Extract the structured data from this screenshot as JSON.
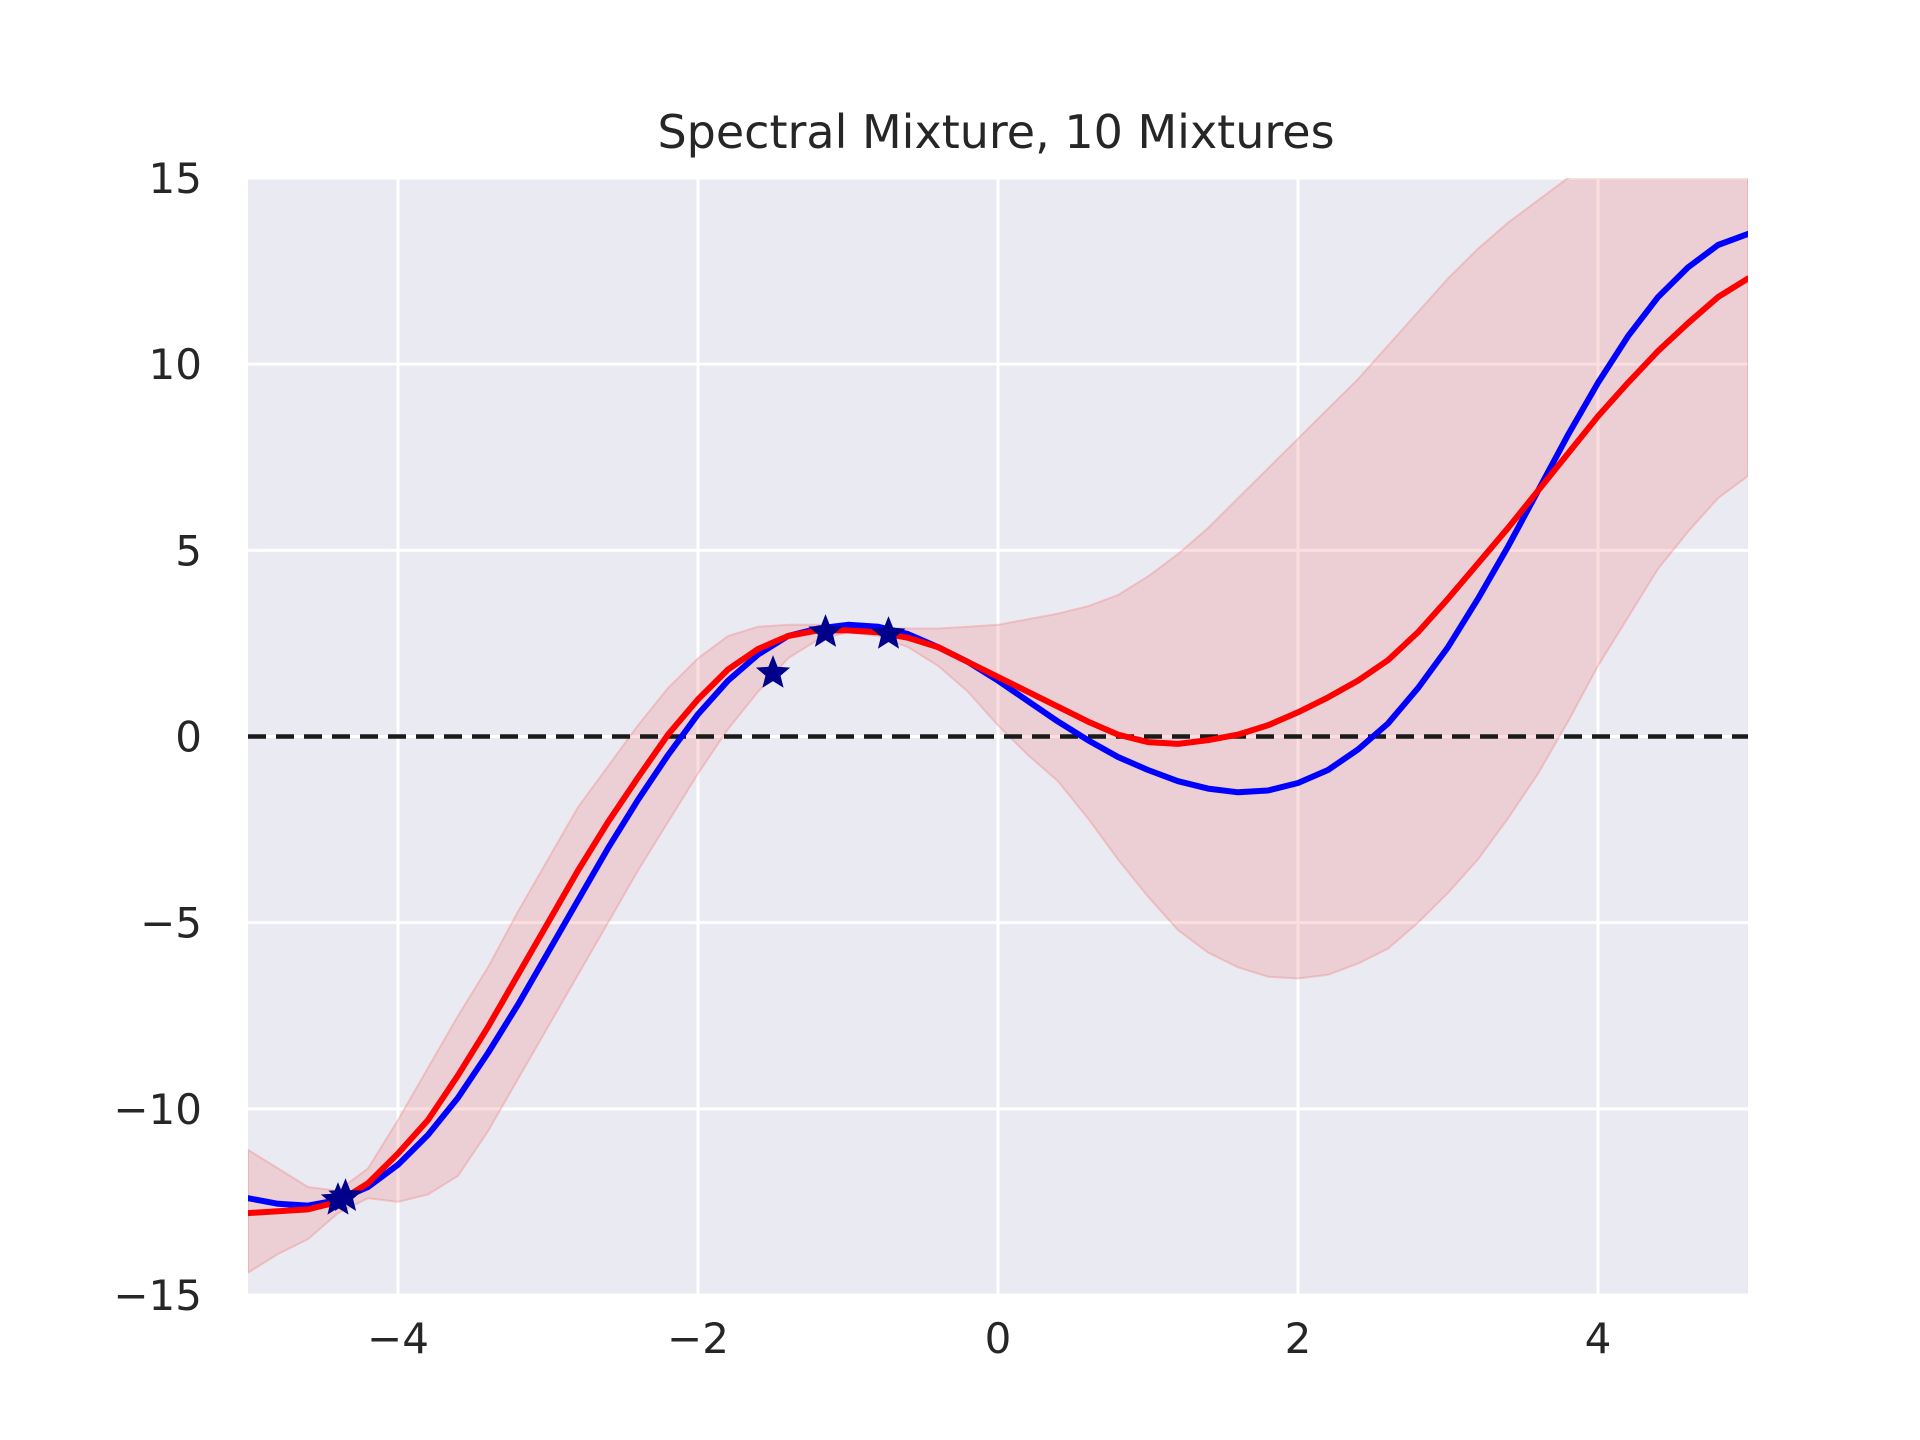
{
  "chart_data": {
    "type": "line",
    "title": "Spectral Mixture, 10 Mixtures",
    "xlabel": "",
    "ylabel": "",
    "xlim": [
      -5,
      5
    ],
    "ylim": [
      -15,
      15
    ],
    "x_ticks": [
      -4,
      -2,
      0,
      2,
      4
    ],
    "y_ticks": [
      -15,
      -10,
      -5,
      0,
      5,
      10,
      15
    ],
    "x_tick_labels": [
      "−4",
      "−2",
      "0",
      "2",
      "4"
    ],
    "y_tick_labels": [
      "−15",
      "−10",
      "−5",
      "0",
      "5",
      "10",
      "15"
    ],
    "grid": true,
    "legend": "none",
    "colors": {
      "background": "#eaeaf2",
      "grid": "#ffffff",
      "true_function": "#0000ff",
      "predictive_mean": "#ff0000",
      "confidence_band": "#f08080",
      "observations": "#00008b",
      "zero_line": "#1a1a1a"
    },
    "series": [
      {
        "role": "true-function",
        "x": [
          -5,
          -4.8,
          -4.6,
          -4.4,
          -4.2,
          -4,
          -3.8,
          -3.6,
          -3.4,
          -3.2,
          -3,
          -2.8,
          -2.6,
          -2.4,
          -2.2,
          -2,
          -1.8,
          -1.6,
          -1.4,
          -1.2,
          -1,
          -0.8,
          -0.6,
          -0.4,
          -0.2,
          0,
          0.2,
          0.4,
          0.6,
          0.8,
          1,
          1.2,
          1.4,
          1.6,
          1.8,
          2,
          2.2,
          2.4,
          2.6,
          2.8,
          3,
          3.2,
          3.4,
          3.6,
          3.8,
          4,
          4.2,
          4.4,
          4.6,
          4.8,
          5
        ],
        "y": [
          -12.4,
          -12.55,
          -12.6,
          -12.45,
          -12.1,
          -11.5,
          -10.7,
          -9.7,
          -8.5,
          -7.2,
          -5.8,
          -4.4,
          -3.0,
          -1.7,
          -0.5,
          0.6,
          1.5,
          2.2,
          2.7,
          2.9,
          3.0,
          2.95,
          2.75,
          2.4,
          2.0,
          1.5,
          0.95,
          0.4,
          -0.1,
          -0.55,
          -0.9,
          -1.2,
          -1.4,
          -1.5,
          -1.45,
          -1.25,
          -0.9,
          -0.35,
          0.35,
          1.3,
          2.4,
          3.7,
          5.1,
          6.6,
          8.1,
          9.5,
          10.75,
          11.8,
          12.6,
          13.2,
          13.5
        ]
      },
      {
        "role": "predictive-mean",
        "x": [
          -5,
          -4.8,
          -4.6,
          -4.4,
          -4.2,
          -4,
          -3.8,
          -3.6,
          -3.4,
          -3.2,
          -3,
          -2.8,
          -2.6,
          -2.4,
          -2.2,
          -2,
          -1.8,
          -1.6,
          -1.4,
          -1.2,
          -1,
          -0.8,
          -0.6,
          -0.4,
          -0.2,
          0,
          0.2,
          0.4,
          0.6,
          0.8,
          1,
          1.2,
          1.4,
          1.6,
          1.8,
          2,
          2.2,
          2.4,
          2.6,
          2.8,
          3,
          3.2,
          3.4,
          3.6,
          3.8,
          4,
          4.2,
          4.4,
          4.6,
          4.8,
          5
        ],
        "y": [
          -12.8,
          -12.75,
          -12.7,
          -12.5,
          -12.0,
          -11.2,
          -10.3,
          -9.1,
          -7.8,
          -6.4,
          -5.0,
          -3.6,
          -2.3,
          -1.1,
          0.05,
          1.0,
          1.8,
          2.35,
          2.7,
          2.85,
          2.85,
          2.8,
          2.65,
          2.4,
          2.0,
          1.6,
          1.2,
          0.8,
          0.4,
          0.05,
          -0.15,
          -0.2,
          -0.1,
          0.05,
          0.3,
          0.65,
          1.05,
          1.5,
          2.05,
          2.8,
          3.7,
          4.65,
          5.6,
          6.6,
          7.6,
          8.6,
          9.5,
          10.35,
          11.1,
          11.8,
          12.3
        ]
      }
    ],
    "confidence_band": {
      "x": [
        -5,
        -4.8,
        -4.6,
        -4.4,
        -4.2,
        -4,
        -3.8,
        -3.6,
        -3.4,
        -3.2,
        -3,
        -2.8,
        -2.6,
        -2.4,
        -2.2,
        -2,
        -1.8,
        -1.6,
        -1.4,
        -1.2,
        -1,
        -0.8,
        -0.6,
        -0.4,
        -0.2,
        0,
        0.2,
        0.4,
        0.6,
        0.8,
        1,
        1.2,
        1.4,
        1.6,
        1.8,
        2,
        2.2,
        2.4,
        2.6,
        2.8,
        3,
        3.2,
        3.4,
        3.6,
        3.8,
        4,
        4.2,
        4.4,
        4.6,
        4.8,
        5
      ],
      "lower": [
        -14.4,
        -13.9,
        -13.5,
        -12.8,
        -12.4,
        -12.5,
        -12.3,
        -11.8,
        -10.6,
        -9.2,
        -7.8,
        -6.4,
        -5.0,
        -3.6,
        -2.3,
        -1.0,
        0.2,
        1.2,
        2.1,
        2.6,
        2.8,
        2.7,
        2.4,
        1.9,
        1.2,
        0.3,
        -0.5,
        -1.2,
        -2.2,
        -3.3,
        -4.3,
        -5.2,
        -5.8,
        -6.2,
        -6.45,
        -6.5,
        -6.4,
        -6.1,
        -5.7,
        -5.0,
        -4.2,
        -3.3,
        -2.2,
        -1.0,
        0.4,
        1.9,
        3.2,
        4.5,
        5.5,
        6.4,
        7.0
      ],
      "upper": [
        -11.1,
        -11.6,
        -12.1,
        -12.2,
        -11.6,
        -10.3,
        -8.9,
        -7.5,
        -6.2,
        -4.7,
        -3.3,
        -1.9,
        -0.8,
        0.3,
        1.3,
        2.1,
        2.7,
        2.95,
        3.0,
        3.0,
        2.95,
        2.9,
        2.9,
        2.9,
        2.95,
        3.0,
        3.15,
        3.3,
        3.5,
        3.8,
        4.3,
        4.9,
        5.6,
        6.4,
        7.2,
        8.0,
        8.8,
        9.6,
        10.5,
        11.4,
        12.3,
        13.1,
        13.8,
        14.4,
        15.0,
        15.6,
        16.2,
        16.8,
        17.3,
        17.8,
        18.2
      ]
    },
    "observations": {
      "x": [
        -4.4,
        -4.35,
        -1.5,
        -1.15,
        -0.73
      ],
      "y": [
        -12.45,
        -12.35,
        1.7,
        2.8,
        2.75
      ]
    },
    "reference_line": {
      "y": 0,
      "style": "dashed"
    }
  }
}
